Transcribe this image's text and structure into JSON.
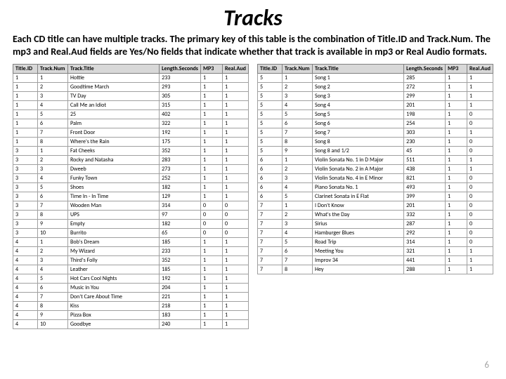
{
  "title": "Tracks",
  "description": "Each CD title can have multiple tracks. The primary key of this table is the combination of Title.ID and Track.Num. The mp3 and Real.Aud fields are Yes/No fields that indicate whether that track is available in mp3 or Real Audio formats.",
  "page_number": "6",
  "columns": [
    "Title.ID",
    "Track.Num",
    "Track.Title",
    "Length.Seconds",
    "MP3",
    "Real.Aud"
  ],
  "left_rows": [
    [
      "1",
      "1",
      "Hottie",
      "233",
      "1",
      "1"
    ],
    [
      "1",
      "2",
      "Goodtime March",
      "293",
      "1",
      "1"
    ],
    [
      "1",
      "3",
      "TV Day",
      "305",
      "1",
      "1"
    ],
    [
      "1",
      "4",
      "Call Me an Idiot",
      "315",
      "1",
      "1"
    ],
    [
      "1",
      "5",
      "25",
      "402",
      "1",
      "1"
    ],
    [
      "1",
      "6",
      "Palm",
      "322",
      "1",
      "1"
    ],
    [
      "1",
      "7",
      "Front Door",
      "192",
      "1",
      "1"
    ],
    [
      "1",
      "8",
      "Where's the Rain",
      "175",
      "1",
      "1"
    ],
    [
      "3",
      "1",
      "Fat Cheeks",
      "352",
      "1",
      "1"
    ],
    [
      "3",
      "2",
      "Rocky and Natasha",
      "283",
      "1",
      "1"
    ],
    [
      "3",
      "3",
      "Dweeb",
      "273",
      "1",
      "1"
    ],
    [
      "3",
      "4",
      "Funky Town",
      "252",
      "1",
      "1"
    ],
    [
      "3",
      "5",
      "Shoes",
      "182",
      "1",
      "1"
    ],
    [
      "3",
      "6",
      "Time In - In Time",
      "129",
      "1",
      "1"
    ],
    [
      "3",
      "7",
      "Wooden Man",
      "314",
      "0",
      "0"
    ],
    [
      "3",
      "8",
      "UPS",
      "97",
      "0",
      "0"
    ],
    [
      "3",
      "9",
      "Empty",
      "182",
      "0",
      "0"
    ],
    [
      "3",
      "10",
      "Burrito",
      "65",
      "0",
      "0"
    ],
    [
      "4",
      "1",
      "Bob's Dream",
      "185",
      "1",
      "1"
    ],
    [
      "4",
      "2",
      "My Wizard",
      "233",
      "1",
      "1"
    ],
    [
      "4",
      "3",
      "Third's Folly",
      "352",
      "1",
      "1"
    ],
    [
      "4",
      "4",
      "Leather",
      "185",
      "1",
      "1"
    ],
    [
      "4",
      "5",
      "Hot Cars Cool Nights",
      "192",
      "1",
      "1"
    ],
    [
      "4",
      "6",
      "Music in You",
      "204",
      "1",
      "1"
    ],
    [
      "4",
      "7",
      "Don't Care About Time",
      "221",
      "1",
      "1"
    ],
    [
      "4",
      "8",
      "Kiss",
      "218",
      "1",
      "1"
    ],
    [
      "4",
      "9",
      "Pizza Box",
      "183",
      "1",
      "1"
    ],
    [
      "4",
      "10",
      "Goodbye",
      "240",
      "1",
      "1"
    ]
  ],
  "right_rows": [
    [
      "5",
      "1",
      "Song 1",
      "285",
      "1",
      "1"
    ],
    [
      "5",
      "2",
      "Song 2",
      "272",
      "1",
      "1"
    ],
    [
      "5",
      "3",
      "Song 3",
      "299",
      "1",
      "1"
    ],
    [
      "5",
      "4",
      "Song 4",
      "201",
      "1",
      "1"
    ],
    [
      "5",
      "5",
      "Song 5",
      "198",
      "1",
      "0"
    ],
    [
      "5",
      "6",
      "Song 6",
      "254",
      "1",
      "0"
    ],
    [
      "5",
      "7",
      "Song 7",
      "303",
      "1",
      "1"
    ],
    [
      "5",
      "8",
      "Song 8",
      "230",
      "1",
      "0"
    ],
    [
      "5",
      "9",
      "Song 8 and 1/2",
      "45",
      "1",
      "0"
    ],
    [
      "6",
      "1",
      "Violin Sonata No. 1 in D Major",
      "511",
      "1",
      "1"
    ],
    [
      "6",
      "2",
      "Violin Sonata No. 2 in A Major",
      "438",
      "1",
      "1"
    ],
    [
      "6",
      "3",
      "Violin Sonata No. 4 in E Minor",
      "821",
      "1",
      "0"
    ],
    [
      "6",
      "4",
      "Piano Sonata No. 1",
      "493",
      "1",
      "0"
    ],
    [
      "6",
      "5",
      "Clarinet Sonata in E Flat",
      "399",
      "1",
      "0"
    ],
    [
      "7",
      "1",
      "I Don't Know",
      "201",
      "1",
      "0"
    ],
    [
      "7",
      "2",
      "What's the Day",
      "332",
      "1",
      "0"
    ],
    [
      "7",
      "3",
      "Sirius",
      "287",
      "1",
      "0"
    ],
    [
      "7",
      "4",
      "Hamburger Blues",
      "292",
      "1",
      "0"
    ],
    [
      "7",
      "5",
      "Road Trip",
      "314",
      "1",
      "0"
    ],
    [
      "7",
      "6",
      "Meeting You",
      "321",
      "1",
      "1"
    ],
    [
      "7",
      "7",
      "Improv 34",
      "441",
      "1",
      "1"
    ],
    [
      "7",
      "8",
      "Hey",
      "288",
      "1",
      "1"
    ]
  ],
  "style": {
    "header_bg": "#d8d8d8",
    "border_color": "#a0a0a0",
    "font_size_body": 8,
    "font_size_title": 32,
    "font_size_desc": 14
  }
}
